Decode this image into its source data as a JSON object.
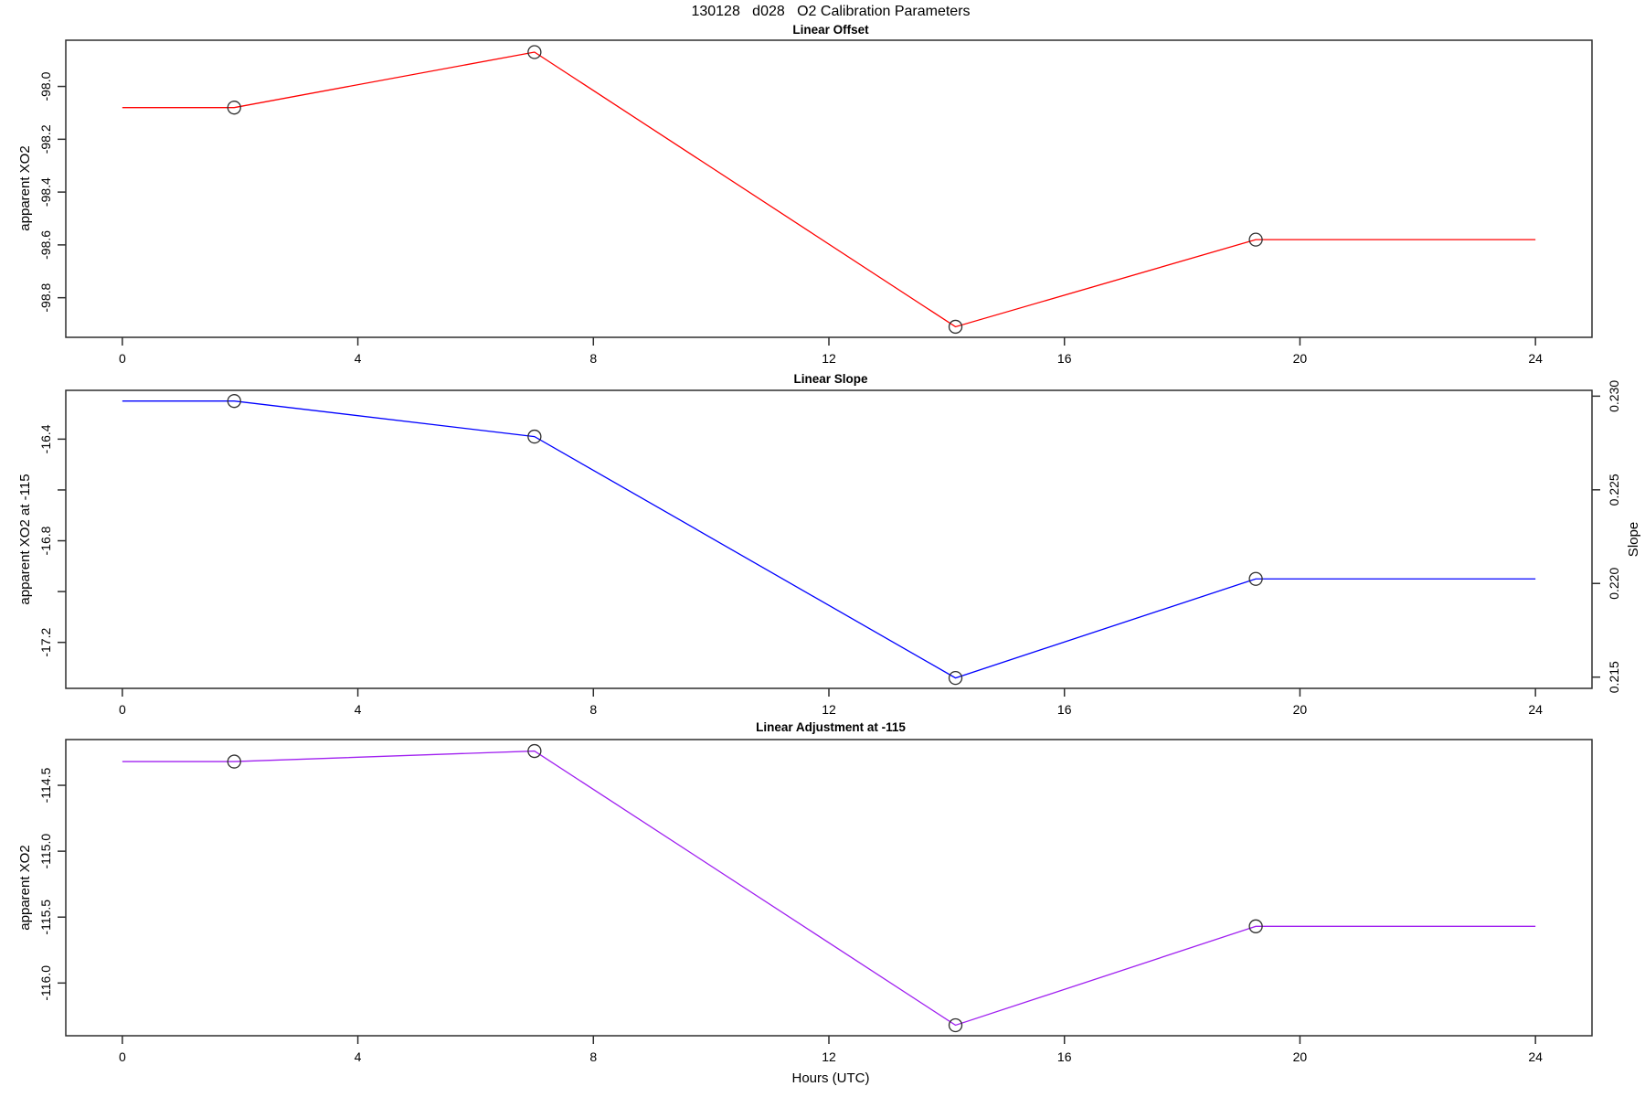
{
  "title": "130128   d028   O2 Calibration Parameters",
  "xlabel": "Hours (UTC)",
  "chart_data": [
    {
      "type": "line",
      "title": "Linear Offset",
      "ylabel": "apparent XO2",
      "xlim": [
        -0.96,
        24.96
      ],
      "ylim": [
        -98.95,
        -97.825
      ],
      "xticks": [
        0,
        4,
        8,
        12,
        16,
        20,
        24
      ],
      "yticks": [
        {
          "v": -98.0,
          "label": "-98.0"
        },
        {
          "v": -98.2,
          "label": "-98.2"
        },
        {
          "v": -98.4,
          "label": "-98.4"
        },
        {
          "v": -98.6,
          "label": "-98.6"
        },
        {
          "v": -98.8,
          "label": "-98.8"
        }
      ],
      "series": [
        {
          "name": "linear offset",
          "color": "#ff0000",
          "marker_color": "#2e2e2e",
          "x": [
            0,
            1.9,
            7.0,
            14.15,
            19.25,
            24
          ],
          "y": [
            -98.08,
            -98.08,
            -97.87,
            -98.91,
            -98.58,
            -98.58
          ],
          "markers": [
            1,
            2,
            3,
            4
          ]
        }
      ]
    },
    {
      "type": "line",
      "title": "Linear Slope",
      "ylabel": "apparent XO2 at -115",
      "y2label": "Slope",
      "xlim": [
        -0.96,
        24.96
      ],
      "ylim": [
        -17.381,
        -16.208
      ],
      "y2lim": [
        0.2144,
        0.23031
      ],
      "xticks": [
        0,
        4,
        8,
        12,
        16,
        20,
        24
      ],
      "yticks": [
        {
          "v": -16.4,
          "label": "-16.4"
        },
        {
          "v": -16.6,
          "label": null
        },
        {
          "v": -16.8,
          "label": "-16.8"
        },
        {
          "v": -17.0,
          "label": null
        },
        {
          "v": -17.2,
          "label": "-17.2"
        }
      ],
      "y2ticks": [
        {
          "v": 0.23,
          "label": "0.230"
        },
        {
          "v": 0.225,
          "label": "0.225"
        },
        {
          "v": 0.22,
          "label": "0.220"
        },
        {
          "v": 0.215,
          "label": "0.215"
        }
      ],
      "series": [
        {
          "name": "linear slope",
          "color": "#0000ff",
          "marker_color": "#2e2e2e",
          "x": [
            0,
            1.9,
            7.0,
            14.15,
            19.25,
            24
          ],
          "y": [
            -16.25,
            -16.25,
            -16.39,
            -17.34,
            -16.95,
            -16.95
          ],
          "y2": [
            0.2297,
            0.2297,
            0.2278,
            0.215,
            0.2202,
            0.2202
          ],
          "markers": [
            1,
            2,
            3,
            4
          ]
        }
      ]
    },
    {
      "type": "line",
      "title": "Linear Adjustment at -115",
      "ylabel": "apparent XO2",
      "xlim": [
        -0.96,
        24.96
      ],
      "ylim": [
        -116.4,
        -114.153
      ],
      "xticks": [
        0,
        4,
        8,
        12,
        16,
        20,
        24
      ],
      "yticks": [
        {
          "v": -114.5,
          "label": "-114.5"
        },
        {
          "v": -115.0,
          "label": "-115.0"
        },
        {
          "v": -115.5,
          "label": "-115.5"
        },
        {
          "v": -116.0,
          "label": "-116.0"
        }
      ],
      "series": [
        {
          "name": "linear adjustment",
          "color": "#a020f0",
          "marker_color": "#2e2e2e",
          "x": [
            0,
            1.9,
            7.0,
            14.15,
            19.25,
            24
          ],
          "y": [
            -114.32,
            -114.32,
            -114.24,
            -116.32,
            -115.57,
            -115.57
          ],
          "markers": [
            1,
            2,
            3,
            4
          ]
        }
      ]
    }
  ]
}
